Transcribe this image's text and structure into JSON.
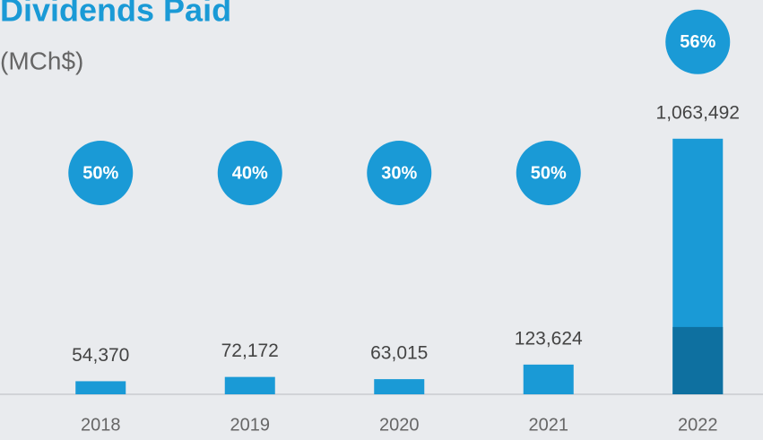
{
  "chart_data": {
    "type": "bar",
    "title": "Dividends Paid",
    "subtitle": "(MCh$)",
    "categories": [
      "2018",
      "2019",
      "2020",
      "2021",
      "2022"
    ],
    "values": [
      54370,
      72172,
      63015,
      123624,
      1063492
    ],
    "value_labels": [
      "54,370",
      "72,172",
      "63,015",
      "123,624",
      "1,063,492"
    ],
    "color": "#1a9ad6",
    "dark_segment": {
      "category": "2022",
      "value": 280000,
      "color": "#0e70a0"
    },
    "payout": [
      50,
      40,
      30,
      50,
      56
    ],
    "payout_labels": [
      "50%",
      "40%",
      "30%",
      "50%",
      "56%"
    ],
    "payout_color": "#1a9ad6",
    "ylim": [
      0,
      1100000
    ]
  }
}
